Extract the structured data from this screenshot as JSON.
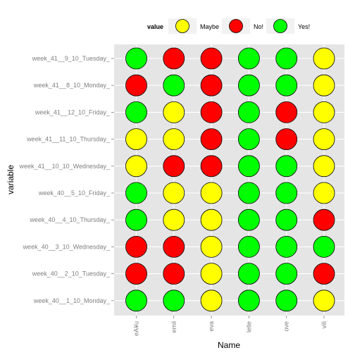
{
  "chart_data": {
    "type": "scatter",
    "xlabel": "Name",
    "ylabel": "variable",
    "x_categories": [
      "eA¥u",
      "emil",
      "eva",
      "lelle",
      "ove",
      "vili"
    ],
    "y_categories": [
      "week_40__1_10_Monday_",
      "week_40__2_10_Tuesday_",
      "week_40__3_10_Wednesday_",
      "week_40__4_10_Thursday_",
      "week_40__5_10_Friday_",
      "week_41__10_10_Wednesday_",
      "week_41__11_10_Thursday_",
      "week_41__12_10_Friday_",
      "week_41__8_10_Monday_",
      "week_41__9_10_Tuesday_"
    ],
    "legend": {
      "title": "value",
      "position": "top",
      "entries": [
        {
          "label": "Maybe",
          "color": "#ffff00"
        },
        {
          "label": "No!",
          "color": "#ff0000"
        },
        {
          "label": "Yes!",
          "color": "#00ff00"
        }
      ]
    },
    "grid": true,
    "panel_background": "#e5e5e5",
    "grid_color": "#ffffff",
    "values": [
      {
        "variable": "week_41__9_10_Tuesday_",
        "Name": [
          "Yes!",
          "No!",
          "No!",
          "Yes!",
          "Yes!",
          "Maybe"
        ]
      },
      {
        "variable": "week_41__8_10_Monday_",
        "Name": [
          "No!",
          "Yes!",
          "No!",
          "Yes!",
          "Yes!",
          "Maybe"
        ]
      },
      {
        "variable": "week_41__12_10_Friday_",
        "Name": [
          "Yes!",
          "Maybe",
          "No!",
          "Yes!",
          "No!",
          "Maybe"
        ]
      },
      {
        "variable": "week_41__11_10_Thursday_",
        "Name": [
          "Maybe",
          "Maybe",
          "No!",
          "Yes!",
          "No!",
          "Maybe"
        ]
      },
      {
        "variable": "week_41__10_10_Wednesday_",
        "Name": [
          "Maybe",
          "No!",
          "No!",
          "Yes!",
          "Yes!",
          "Maybe"
        ]
      },
      {
        "variable": "week_40__5_10_Friday_",
        "Name": [
          "Yes!",
          "Maybe",
          "Maybe",
          "Yes!",
          "Yes!",
          "Maybe"
        ]
      },
      {
        "variable": "week_40__4_10_Thursday_",
        "Name": [
          "Yes!",
          "Maybe",
          "Maybe",
          "Yes!",
          "Yes!",
          "No!"
        ]
      },
      {
        "variable": "week_40__3_10_Wednesday_",
        "Name": [
          "No!",
          "No!",
          "Maybe",
          "Yes!",
          "Yes!",
          "Yes!"
        ]
      },
      {
        "variable": "week_40__2_10_Tuesday_",
        "Name": [
          "No!",
          "No!",
          "Maybe",
          "Yes!",
          "Yes!",
          "No!"
        ]
      },
      {
        "variable": "week_40__1_10_Monday_",
        "Name": [
          "Yes!",
          "Yes!",
          "Maybe",
          "Yes!",
          "Yes!",
          "Maybe"
        ]
      }
    ]
  }
}
